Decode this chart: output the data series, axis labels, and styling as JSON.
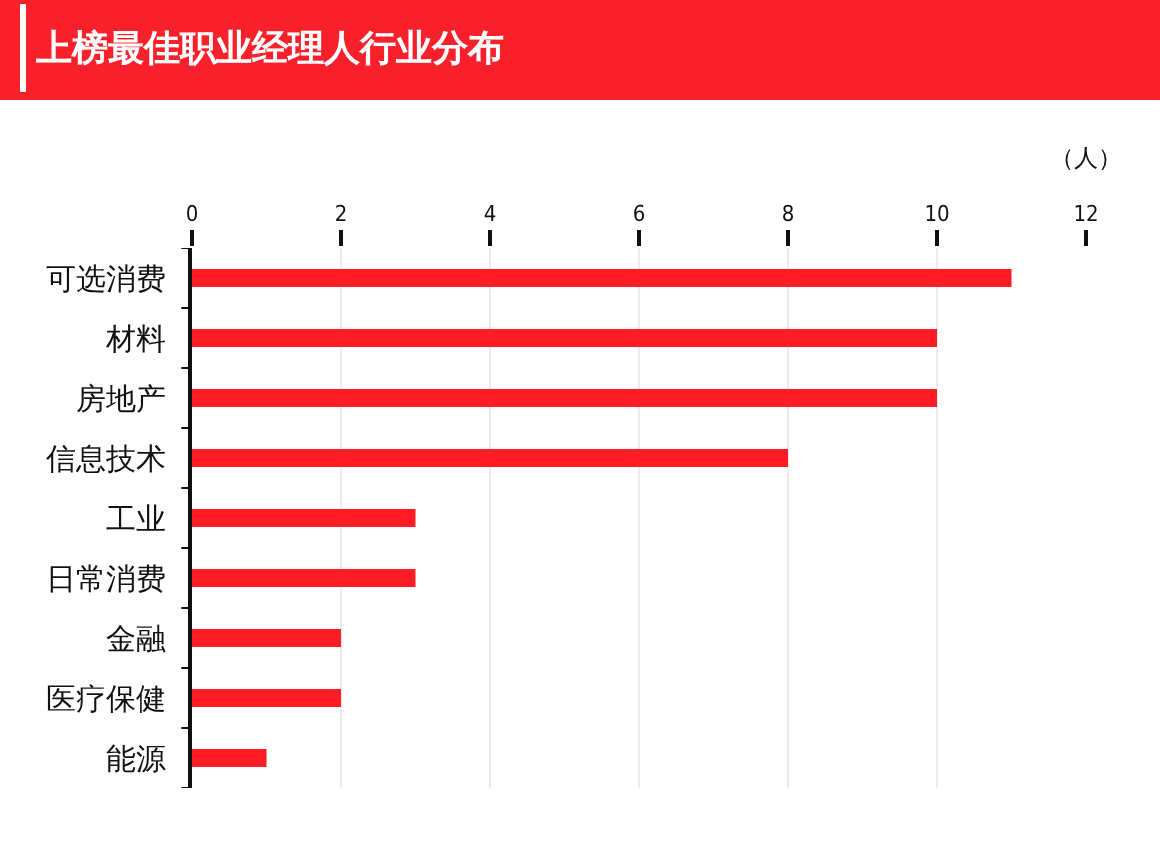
{
  "chart_data": {
    "type": "bar",
    "orientation": "horizontal",
    "title": "上榜最佳职业经理人行业分布",
    "xlabel": "（人）",
    "categories": [
      "可选消费",
      "材料",
      "房地产",
      "信息技术",
      "工业",
      "日常消费",
      "金融",
      "医疗保健",
      "能源"
    ],
    "values": [
      11,
      10,
      10,
      8,
      3,
      3,
      2,
      2,
      1
    ],
    "color": "#ff1c24",
    "xlim": [
      0,
      12
    ],
    "xticks": [
      0,
      2,
      4,
      6,
      8,
      10,
      12
    ],
    "grid": "x"
  }
}
